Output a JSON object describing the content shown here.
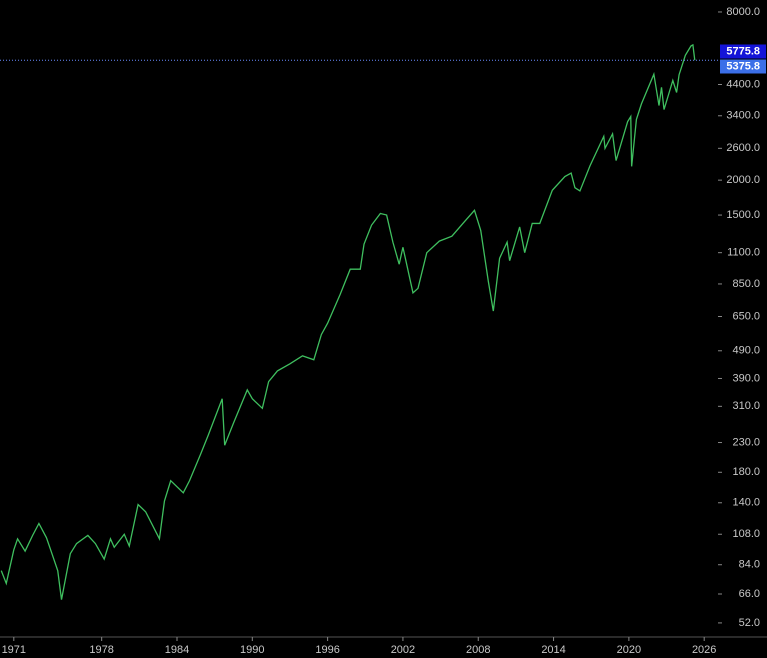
{
  "chart_data": {
    "type": "line",
    "log_scale": true,
    "x": [
      1970.0,
      1970.4,
      1971.0,
      1971.3,
      1971.9,
      1972.5,
      1973.0,
      1973.6,
      1973.9,
      1974.5,
      1974.8,
      1975.5,
      1976.0,
      1976.9,
      1977.5,
      1978.2,
      1978.7,
      1979.0,
      1979.8,
      1980.2,
      1980.9,
      1981.5,
      1982.6,
      1983.0,
      1983.5,
      1984.5,
      1985.0,
      1985.9,
      1986.5,
      1987.6,
      1987.8,
      1988.5,
      1989.6,
      1990.0,
      1990.8,
      1991.3,
      1992.0,
      1993.0,
      1994.0,
      1994.9,
      1995.5,
      1996.0,
      1997.0,
      1997.8,
      1998.6,
      1998.9,
      1999.5,
      2000.2,
      2000.7,
      2001.2,
      2001.7,
      2002.0,
      2002.8,
      2003.2,
      2003.9,
      2004.9,
      2005.9,
      2006.9,
      2007.7,
      2008.2,
      2008.8,
      2009.2,
      2009.7,
      2010.3,
      2010.5,
      2011.3,
      2011.7,
      2012.3,
      2012.9,
      2013.9,
      2014.9,
      2015.4,
      2015.7,
      2016.1,
      2016.9,
      2018.0,
      2018.1,
      2018.7,
      2018.98,
      2019.9,
      2020.15,
      2020.22,
      2020.6,
      2021.0,
      2021.99,
      2022.4,
      2022.6,
      2022.8,
      2023.5,
      2023.8,
      2024.0,
      2024.5,
      2024.95,
      2025.1,
      2025.25
    ],
    "series": [
      {
        "color": "#3fbf5f",
        "values": [
          80,
          72,
          95,
          104,
          94,
          107,
          118,
          105,
          96,
          80,
          63,
          92,
          100,
          107,
          100,
          88,
          104,
          97,
          108,
          98,
          138,
          130,
          104,
          142,
          168,
          152,
          168,
          210,
          245,
          330,
          225,
          270,
          355,
          330,
          305,
          380,
          415,
          440,
          470,
          455,
          560,
          615,
          780,
          960,
          960,
          1180,
          1380,
          1520,
          1500,
          1200,
          1000,
          1150,
          790,
          820,
          1100,
          1210,
          1260,
          1420,
          1560,
          1320,
          870,
          680,
          1050,
          1200,
          1030,
          1360,
          1100,
          1400,
          1400,
          1840,
          2060,
          2120,
          1880,
          1830,
          2250,
          2870,
          2600,
          2930,
          2350,
          3240,
          3380,
          2240,
          3300,
          3750,
          4790,
          3700,
          4300,
          3580,
          4550,
          4120,
          4770,
          5600,
          6050,
          6100,
          5375.8
        ]
      }
    ],
    "xlim": [
      1969.9,
      2027.1
    ],
    "xticks": [
      1971,
      1978,
      1984,
      1990,
      1996,
      2002,
      2008,
      2014,
      2020,
      2026
    ],
    "ylim": [
      46.3,
      8830
    ],
    "yticks": [
      {
        "value": 8000,
        "label": "8000.0"
      },
      {
        "value": 4400,
        "label": "4400.0"
      },
      {
        "value": 3400,
        "label": "3400.0"
      },
      {
        "value": 2600,
        "label": "2600.0"
      },
      {
        "value": 2000,
        "label": "2000.0"
      },
      {
        "value": 1500,
        "label": "1500.0"
      },
      {
        "value": 1100,
        "label": "1100.0"
      },
      {
        "value": 850,
        "label": "850.0"
      },
      {
        "value": 650,
        "label": "650.0"
      },
      {
        "value": 490,
        "label": "490.0"
      },
      {
        "value": 390,
        "label": "390.0"
      },
      {
        "value": 310,
        "label": "310.0"
      },
      {
        "value": 230,
        "label": "230.0"
      },
      {
        "value": 180,
        "label": "180.0"
      },
      {
        "value": 140,
        "label": "140.0"
      },
      {
        "value": 108,
        "label": "108.0"
      },
      {
        "value": 84,
        "label": "84.0"
      },
      {
        "value": 66,
        "label": "66.0"
      },
      {
        "value": 52,
        "label": "52.0"
      }
    ],
    "markers": [
      {
        "value": 5775.8,
        "color": "#1414d8"
      },
      {
        "value": 5375.8,
        "color": "#3b6fe8"
      }
    ]
  }
}
